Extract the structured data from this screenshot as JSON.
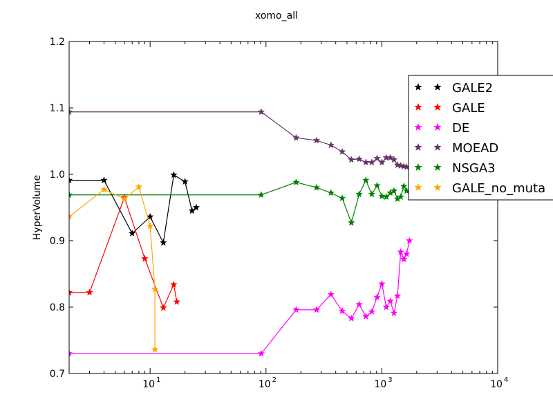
{
  "chart_data": {
    "type": "line",
    "title": "xomo_all",
    "xlabel": "",
    "ylabel": "HyperVolume",
    "xscale": "log",
    "xlim": [
      2,
      10000
    ],
    "ylim": [
      0.7,
      1.2
    ],
    "yticks": [
      "0.7",
      "0.8",
      "0.9",
      "1.0",
      "1.1",
      "1.2"
    ],
    "xticks": [
      {
        "base": "10",
        "exp": "1",
        "value": 10
      },
      {
        "base": "10",
        "exp": "2",
        "value": 100
      },
      {
        "base": "10",
        "exp": "3",
        "value": 1000
      },
      {
        "base": "10",
        "exp": "4",
        "value": 10000
      }
    ],
    "grid": false,
    "legend_position": "upper-right",
    "series": [
      {
        "name": "GALE2",
        "color": "#000000",
        "marker": "star",
        "points": [
          [
            2,
            0.991
          ],
          [
            4,
            0.991
          ],
          [
            7,
            0.911
          ],
          [
            10,
            0.936
          ],
          [
            13,
            0.897
          ],
          [
            16,
            0.999
          ],
          [
            20,
            0.989
          ],
          [
            23,
            0.945
          ],
          [
            25,
            0.95
          ]
        ]
      },
      {
        "name": "GALE",
        "color": "#ff0000",
        "marker": "star",
        "points": [
          [
            2,
            0.822
          ],
          [
            3,
            0.822
          ],
          [
            6,
            0.965
          ],
          [
            9,
            0.873
          ],
          [
            13,
            0.799
          ],
          [
            16,
            0.834
          ],
          [
            17,
            0.808
          ]
        ]
      },
      {
        "name": "DE",
        "color": "#ff00ff",
        "marker": "star",
        "points": [
          [
            2,
            0.73
          ],
          [
            91,
            0.73
          ],
          [
            182,
            0.796
          ],
          [
            273,
            0.796
          ],
          [
            364,
            0.819
          ],
          [
            455,
            0.794
          ],
          [
            546,
            0.783
          ],
          [
            637,
            0.804
          ],
          [
            728,
            0.786
          ],
          [
            819,
            0.793
          ],
          [
            910,
            0.815
          ],
          [
            1001,
            0.835
          ],
          [
            1092,
            0.8
          ],
          [
            1183,
            0.809
          ],
          [
            1274,
            0.791
          ],
          [
            1365,
            0.817
          ],
          [
            1456,
            0.883
          ],
          [
            1547,
            0.872
          ],
          [
            1638,
            0.88
          ],
          [
            1729,
            0.9
          ]
        ]
      },
      {
        "name": "MOEAD",
        "color": "#663366",
        "marker": "star",
        "points": [
          [
            2,
            1.094
          ],
          [
            91,
            1.094
          ],
          [
            182,
            1.055
          ],
          [
            273,
            1.051
          ],
          [
            364,
            1.044
          ],
          [
            455,
            1.034
          ],
          [
            546,
            1.022
          ],
          [
            637,
            1.023
          ],
          [
            728,
            1.018
          ],
          [
            819,
            1.018
          ],
          [
            910,
            1.024
          ],
          [
            1001,
            1.018
          ],
          [
            1092,
            1.025
          ],
          [
            1183,
            1.025
          ],
          [
            1274,
            1.022
          ],
          [
            1365,
            1.014
          ],
          [
            1456,
            1.013
          ],
          [
            1547,
            1.012
          ],
          [
            1638,
            1.011
          ]
        ]
      },
      {
        "name": "NSGA3",
        "color": "#008000",
        "marker": "star",
        "points": [
          [
            2,
            0.969
          ],
          [
            91,
            0.969
          ],
          [
            182,
            0.988
          ],
          [
            273,
            0.98
          ],
          [
            364,
            0.972
          ],
          [
            455,
            0.964
          ],
          [
            546,
            0.927
          ],
          [
            637,
            0.97
          ],
          [
            728,
            0.991
          ],
          [
            819,
            0.97
          ],
          [
            910,
            0.983
          ],
          [
            1001,
            0.967
          ],
          [
            1092,
            0.966
          ],
          [
            1183,
            0.972
          ],
          [
            1274,
            0.975
          ],
          [
            1365,
            0.963
          ],
          [
            1456,
            0.966
          ],
          [
            1547,
            0.982
          ],
          [
            1638,
            0.975
          ]
        ]
      },
      {
        "name": "GALE_no_muta",
        "color": "#ffa500",
        "marker": "star",
        "points": [
          [
            2,
            0.936
          ],
          [
            4,
            0.977
          ],
          [
            6,
            0.963
          ],
          [
            8,
            0.981
          ],
          [
            10,
            0.922
          ],
          [
            11,
            0.827
          ],
          [
            11,
            0.736
          ]
        ]
      }
    ]
  }
}
